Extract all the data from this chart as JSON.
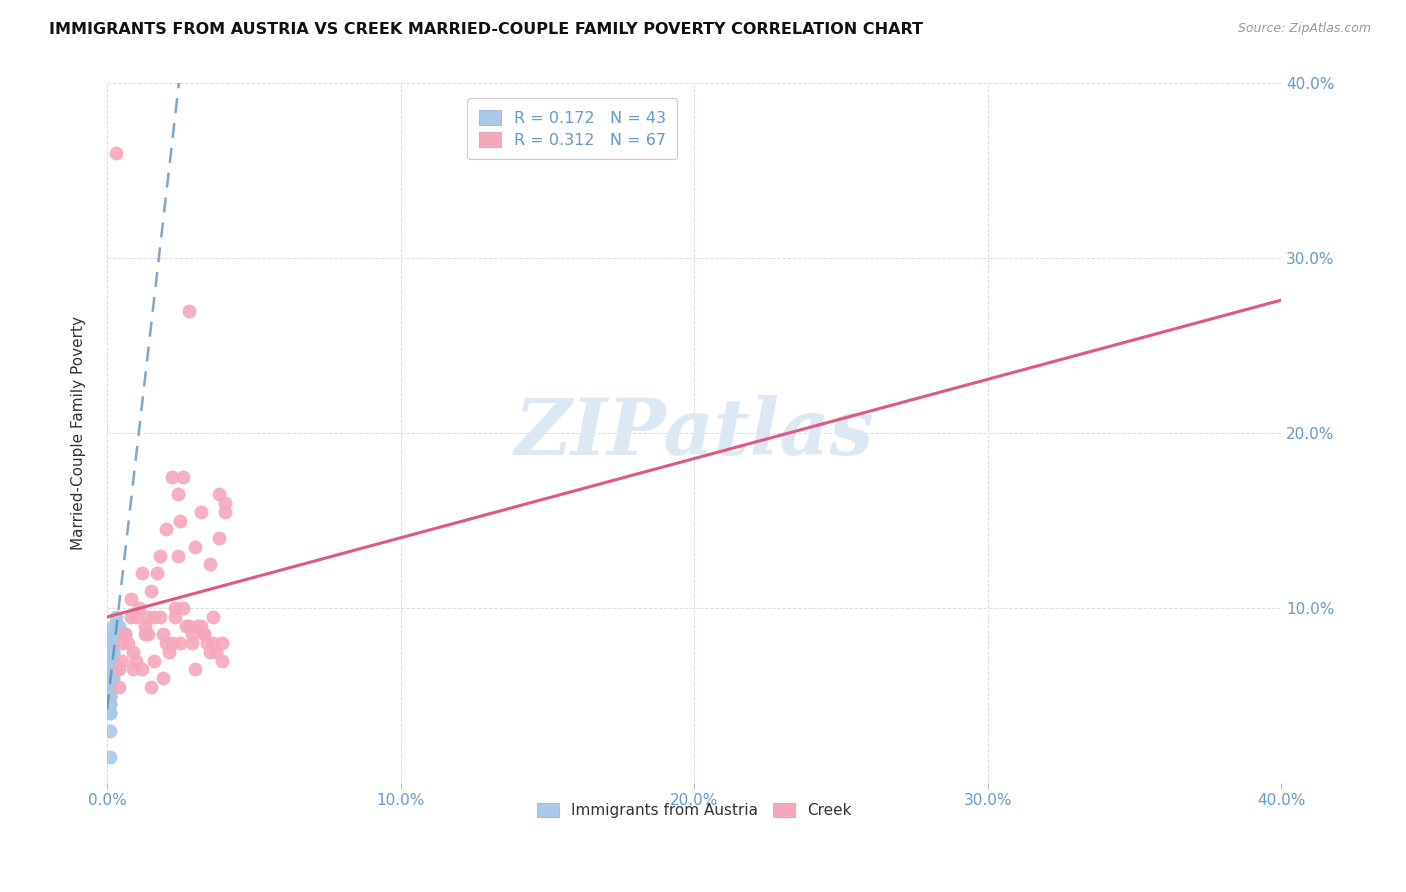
{
  "title": "IMMIGRANTS FROM AUSTRIA VS CREEK MARRIED-COUPLE FAMILY POVERTY CORRELATION CHART",
  "source": "Source: ZipAtlas.com",
  "ylabel": "Married-Couple Family Poverty",
  "xlim": [
    0.0,
    0.4
  ],
  "ylim": [
    0.0,
    0.4
  ],
  "xticks": [
    0.0,
    0.1,
    0.2,
    0.3,
    0.4
  ],
  "yticks": [
    0.0,
    0.1,
    0.2,
    0.3,
    0.4
  ],
  "xtick_labels": [
    "0.0%",
    "10.0%",
    "20.0%",
    "30.0%",
    "40.0%"
  ],
  "ytick_labels_right": [
    "",
    "10.0%",
    "20.0%",
    "30.0%",
    "40.0%"
  ],
  "legend_R_blue": "0.172",
  "legend_N_blue": "43",
  "legend_R_pink": "0.312",
  "legend_N_pink": "67",
  "legend_labels": [
    "Immigrants from Austria",
    "Creek"
  ],
  "blue_scatter_color": "#aac8e8",
  "pink_scatter_color": "#f5a8bc",
  "blue_line_color": "#5588bb",
  "pink_line_color": "#e05880",
  "blue_line_style": "--",
  "pink_line_style": "-",
  "watermark_text": "ZIPatlas",
  "watermark_color": "#dde8f5",
  "background_color": "#ffffff",
  "grid_color": "#d8dfe8",
  "title_color": "#111111",
  "source_color": "#999999",
  "tick_color": "#6699cc",
  "ylabel_color": "#333333",
  "austria_x": [
    0.001,
    0.002,
    0.001,
    0.001,
    0.002,
    0.001,
    0.003,
    0.001,
    0.002,
    0.001,
    0.001,
    0.001,
    0.002,
    0.001,
    0.001,
    0.002,
    0.001,
    0.001,
    0.001,
    0.002,
    0.001,
    0.001,
    0.002,
    0.001,
    0.001,
    0.002,
    0.001,
    0.001,
    0.002,
    0.001,
    0.001,
    0.001,
    0.002,
    0.001,
    0.003,
    0.002,
    0.001,
    0.003,
    0.002,
    0.004,
    0.003,
    0.002,
    0.001
  ],
  "austria_y": [
    0.085,
    0.09,
    0.075,
    0.06,
    0.08,
    0.07,
    0.065,
    0.055,
    0.075,
    0.065,
    0.06,
    0.055,
    0.07,
    0.065,
    0.055,
    0.08,
    0.06,
    0.045,
    0.05,
    0.075,
    0.05,
    0.04,
    0.06,
    0.065,
    0.07,
    0.075,
    0.03,
    0.045,
    0.08,
    0.055,
    0.06,
    0.04,
    0.065,
    0.05,
    0.09,
    0.085,
    0.07,
    0.095,
    0.08,
    0.09,
    0.085,
    0.065,
    0.015
  ],
  "creek_x": [
    0.005,
    0.008,
    0.012,
    0.018,
    0.025,
    0.032,
    0.038,
    0.028,
    0.022,
    0.015,
    0.01,
    0.006,
    0.02,
    0.03,
    0.035,
    0.04,
    0.016,
    0.024,
    0.014,
    0.009,
    0.007,
    0.011,
    0.019,
    0.027,
    0.033,
    0.037,
    0.004,
    0.013,
    0.021,
    0.029,
    0.017,
    0.026,
    0.036,
    0.023,
    0.031,
    0.039,
    0.008,
    0.018,
    0.028,
    0.038,
    0.012,
    0.022,
    0.032,
    0.005,
    0.015,
    0.025,
    0.035,
    0.01,
    0.02,
    0.03,
    0.04,
    0.006,
    0.016,
    0.026,
    0.036,
    0.003,
    0.013,
    0.023,
    0.033,
    0.009,
    0.019,
    0.029,
    0.039,
    0.004,
    0.014,
    0.024,
    0.034
  ],
  "creek_y": [
    0.08,
    0.095,
    0.12,
    0.13,
    0.15,
    0.155,
    0.14,
    0.27,
    0.175,
    0.11,
    0.095,
    0.085,
    0.145,
    0.135,
    0.125,
    0.155,
    0.095,
    0.165,
    0.085,
    0.075,
    0.08,
    0.1,
    0.085,
    0.09,
    0.085,
    0.075,
    0.065,
    0.085,
    0.075,
    0.085,
    0.12,
    0.175,
    0.08,
    0.1,
    0.09,
    0.08,
    0.105,
    0.095,
    0.09,
    0.165,
    0.065,
    0.08,
    0.09,
    0.07,
    0.055,
    0.08,
    0.075,
    0.07,
    0.08,
    0.065,
    0.16,
    0.085,
    0.07,
    0.1,
    0.095,
    0.36,
    0.09,
    0.095,
    0.085,
    0.065,
    0.06,
    0.08,
    0.07,
    0.055,
    0.095,
    0.13,
    0.08
  ],
  "austria_reg": [
    0.0,
    0.4,
    0.075,
    0.32
  ],
  "creek_reg": [
    0.0,
    0.4,
    0.082,
    0.175
  ]
}
